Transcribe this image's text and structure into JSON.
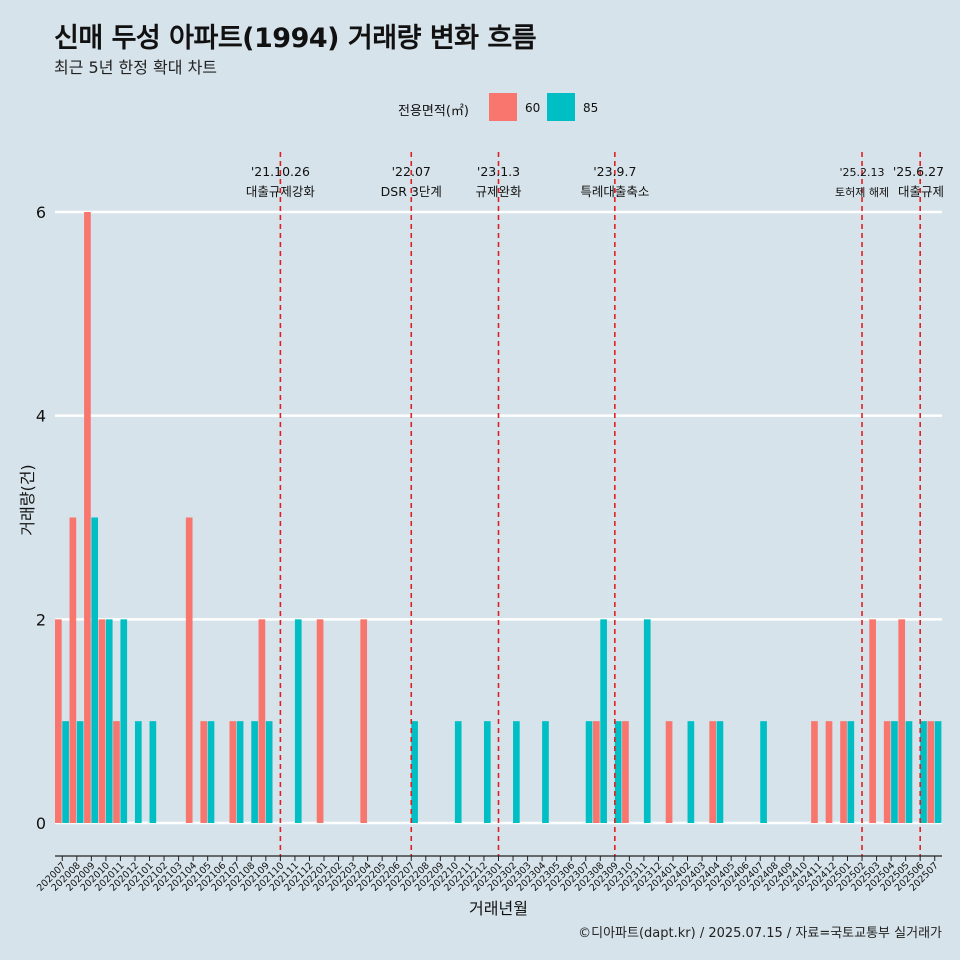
{
  "title": "신매 두성 아파트(1994) 거래량 변화 흐름",
  "subtitle": "최근 5년 한정 확대 차트",
  "caption": "©디아파트(dapt.kr) / 2025.07.15 / 자료=국토교통부 실거래가",
  "legend": {
    "title": "전용면적(㎡)",
    "items": [
      {
        "label": "60",
        "color": "#F8766D"
      },
      {
        "label": "85",
        "color": "#00BFC4"
      }
    ]
  },
  "chart_data": {
    "type": "bar",
    "xlabel": "거래년월",
    "ylabel": "거래량(건)",
    "ylim": [
      0,
      6
    ],
    "yticks": [
      0,
      2,
      4,
      6
    ],
    "grid": true,
    "legend_position": "top",
    "categories": [
      "202007",
      "202008",
      "202009",
      "202010",
      "202011",
      "202012",
      "202101",
      "202102",
      "202103",
      "202104",
      "202105",
      "202106",
      "202107",
      "202108",
      "202109",
      "202110",
      "202111",
      "202112",
      "202201",
      "202202",
      "202203",
      "202204",
      "202205",
      "202206",
      "202207",
      "202208",
      "202209",
      "202210",
      "202211",
      "202212",
      "202301",
      "202302",
      "202303",
      "202304",
      "202305",
      "202306",
      "202307",
      "202308",
      "202309",
      "202310",
      "202311",
      "202312",
      "202401",
      "202402",
      "202403",
      "202404",
      "202405",
      "202406",
      "202407",
      "202408",
      "202409",
      "202410",
      "202411",
      "202412",
      "202501",
      "202502",
      "202503",
      "202504",
      "202505",
      "202506",
      "202507"
    ],
    "series": [
      {
        "name": "60",
        "color": "#F8766D",
        "values": [
          2,
          3,
          6,
          2,
          1,
          0,
          0,
          0,
          0,
          3,
          1,
          0,
          1,
          0,
          2,
          0,
          0,
          0,
          2,
          0,
          0,
          2,
          0,
          0,
          0,
          0,
          0,
          0,
          0,
          0,
          0,
          0,
          0,
          0,
          0,
          0,
          0,
          1,
          0,
          1,
          0,
          0,
          1,
          0,
          0,
          1,
          0,
          0,
          0,
          0,
          0,
          0,
          1,
          1,
          1,
          0,
          2,
          1,
          2,
          0,
          1
        ]
      },
      {
        "name": "85",
        "color": "#00BFC4",
        "values": [
          1,
          1,
          3,
          2,
          2,
          1,
          1,
          0,
          0,
          0,
          1,
          0,
          1,
          1,
          1,
          0,
          2,
          0,
          0,
          0,
          0,
          0,
          0,
          0,
          1,
          0,
          0,
          1,
          0,
          1,
          0,
          1,
          0,
          1,
          0,
          0,
          1,
          2,
          1,
          0,
          2,
          0,
          0,
          1,
          0,
          1,
          0,
          0,
          1,
          0,
          0,
          0,
          0,
          0,
          1,
          0,
          0,
          1,
          1,
          1,
          1
        ]
      }
    ],
    "events": [
      {
        "date": "'21.10.26",
        "label": "대출규제강화",
        "category": "202110"
      },
      {
        "date": "'22.07",
        "label": "DSR 3단계",
        "category": "202207"
      },
      {
        "date": "'23.1.3",
        "label": "규제완화",
        "category": "202301"
      },
      {
        "date": "'23.9.7",
        "label": "특례대출축소",
        "category": "202309"
      },
      {
        "date": "'25.2.13",
        "label": "토허제 해제",
        "category": "202502"
      },
      {
        "date": "'25.6.27",
        "label": "대출규제",
        "category": "202506"
      }
    ]
  }
}
